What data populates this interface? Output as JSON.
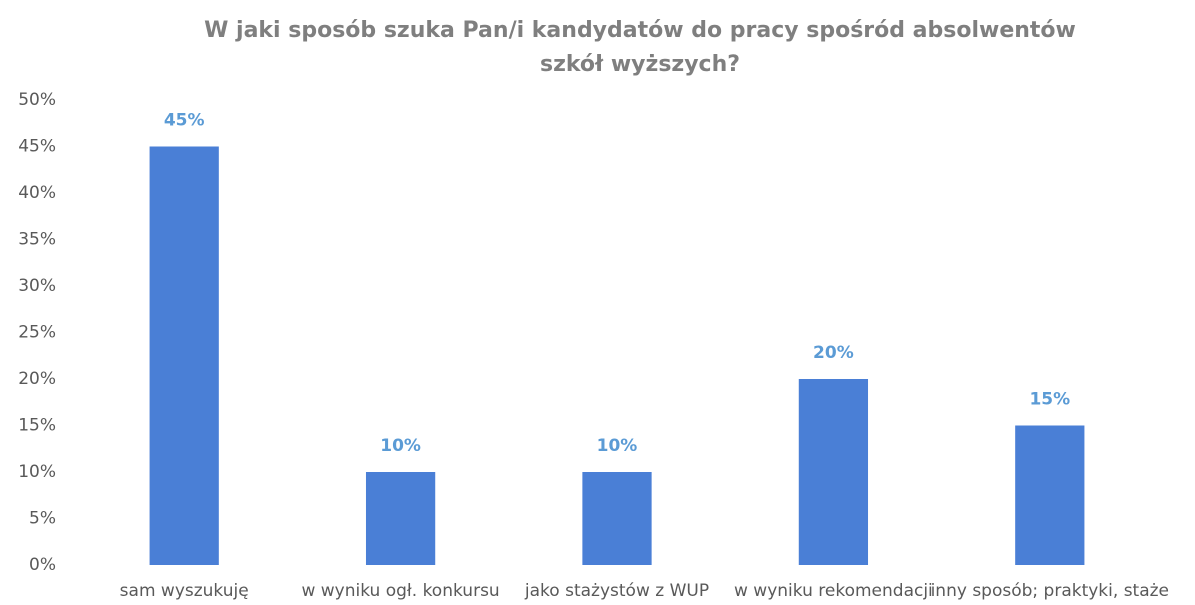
{
  "chart_data": {
    "type": "bar",
    "title": "W jaki sposób szuka Pan/i kandydatów do pracy spośród absolwentów szkół wyższych?",
    "categories": [
      "sam wyszukuję",
      "w wyniku ogł. konkursu",
      "jako stażystów z WUP",
      "w wyniku rekomendacji",
      "inny sposób; praktyki, staże"
    ],
    "values": [
      45,
      10,
      10,
      20,
      15
    ],
    "value_labels": [
      "45%",
      "10%",
      "10%",
      "20%",
      "15%"
    ],
    "color": "#4a7fd6",
    "ylim": [
      0,
      50
    ],
    "yticks": [
      {
        "value": 0,
        "label": "0%"
      },
      {
        "value": 5,
        "label": "5%"
      },
      {
        "value": 10,
        "label": "10%"
      },
      {
        "value": 15,
        "label": "15%"
      },
      {
        "value": 20,
        "label": "20%"
      },
      {
        "value": 25,
        "label": "25%"
      },
      {
        "value": 30,
        "label": "30%"
      },
      {
        "value": 35,
        "label": "35%"
      },
      {
        "value": 40,
        "label": "40%"
      },
      {
        "value": 45,
        "label": "45%"
      },
      {
        "value": 50,
        "label": "50%"
      }
    ],
    "grid": false
  }
}
